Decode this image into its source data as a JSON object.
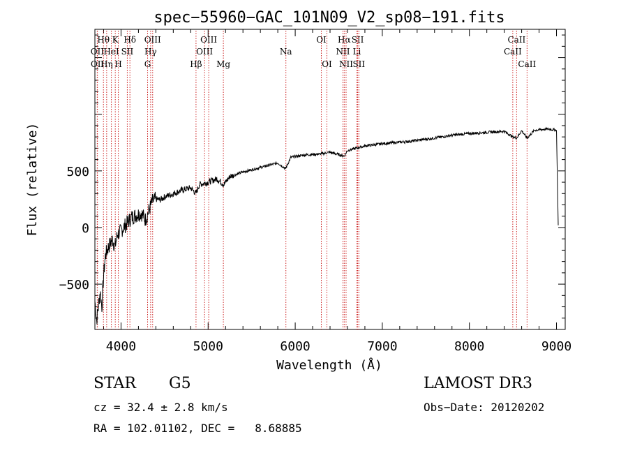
{
  "chart_data": {
    "type": "line",
    "title": "spec−55960−GAC_101N09_V2_sp08−191.fits",
    "xlabel": "Wavelength (Å)",
    "ylabel": "Flux (relative)",
    "xlim": [
      3700,
      9100
    ],
    "ylim": [
      -900,
      1750
    ],
    "grid": false,
    "xticks": [
      4000,
      5000,
      6000,
      7000,
      8000,
      9000
    ],
    "xtick_labels": [
      "4000",
      "5000",
      "6000",
      "7000",
      "8000",
      "9000"
    ],
    "yticks": [
      -500,
      0,
      500
    ],
    "ytick_labels": [
      "−500",
      "0",
      "500"
    ],
    "series": [
      {
        "name": "spectrum",
        "points": [
          [
            3700,
            -650
          ],
          [
            3720,
            -820
          ],
          [
            3740,
            -700
          ],
          [
            3760,
            -560
          ],
          [
            3780,
            -700
          ],
          [
            3800,
            -420
          ],
          [
            3820,
            -250
          ],
          [
            3850,
            -180
          ],
          [
            3880,
            -140
          ],
          [
            3900,
            -100
          ],
          [
            3930,
            -170
          ],
          [
            3960,
            -60
          ],
          [
            3990,
            -40
          ],
          [
            4030,
            0
          ],
          [
            4080,
            50
          ],
          [
            4120,
            90
          ],
          [
            4180,
            110
          ],
          [
            4230,
            130
          ],
          [
            4280,
            70
          ],
          [
            4320,
            150
          ],
          [
            4360,
            230
          ],
          [
            4400,
            250
          ],
          [
            4450,
            245
          ],
          [
            4500,
            270
          ],
          [
            4600,
            300
          ],
          [
            4700,
            330
          ],
          [
            4800,
            350
          ],
          [
            4861,
            300
          ],
          [
            4900,
            380
          ],
          [
            5000,
            400
          ],
          [
            5100,
            430
          ],
          [
            5180,
            380
          ],
          [
            5250,
            450
          ],
          [
            5400,
            490
          ],
          [
            5600,
            530
          ],
          [
            5800,
            570
          ],
          [
            5890,
            520
          ],
          [
            5950,
            620
          ],
          [
            6100,
            640
          ],
          [
            6300,
            650
          ],
          [
            6400,
            665
          ],
          [
            6563,
            630
          ],
          [
            6600,
            680
          ],
          [
            6800,
            720
          ],
          [
            7000,
            740
          ],
          [
            7300,
            760
          ],
          [
            7600,
            790
          ],
          [
            7800,
            815
          ],
          [
            8000,
            830
          ],
          [
            8200,
            840
          ],
          [
            8400,
            850
          ],
          [
            8498,
            800
          ],
          [
            8542,
            790
          ],
          [
            8600,
            855
          ],
          [
            8662,
            790
          ],
          [
            8750,
            860
          ],
          [
            8900,
            870
          ],
          [
            9000,
            860
          ],
          [
            9020,
            20
          ]
        ]
      }
    ],
    "lines": [
      {
        "name": "Hθ",
        "wavelength": 3798,
        "row": 1
      },
      {
        "name": "OII",
        "wavelength": 3727,
        "row": 2
      },
      {
        "name": "OII",
        "wavelength": 3729,
        "row": 3
      },
      {
        "name": "K",
        "wavelength": 3934,
        "row": 1
      },
      {
        "name": "HeI",
        "wavelength": 3889,
        "row": 2
      },
      {
        "name": "Hη",
        "wavelength": 3835,
        "row": 3
      },
      {
        "name": "Hδ",
        "wavelength": 4102,
        "row": 1
      },
      {
        "name": "SII",
        "wavelength": 4072,
        "row": 2
      },
      {
        "name": "H",
        "wavelength": 3969,
        "row": 3
      },
      {
        "name": "OIII",
        "wavelength": 4363,
        "row": 1
      },
      {
        "name": "Hγ",
        "wavelength": 4340,
        "row": 2
      },
      {
        "name": "G",
        "wavelength": 4305,
        "row": 3
      },
      {
        "name": "OIII",
        "wavelength": 5007,
        "row": 1
      },
      {
        "name": "OIII",
        "wavelength": 4959,
        "row": 2
      },
      {
        "name": "Hβ",
        "wavelength": 4861,
        "row": 3
      },
      {
        "name": "Mg",
        "wavelength": 5175,
        "row": 3
      },
      {
        "name": "Na",
        "wavelength": 5893,
        "row": 2
      },
      {
        "name": "OI",
        "wavelength": 6300,
        "row": 1
      },
      {
        "name": "OI",
        "wavelength": 6364,
        "row": 3
      },
      {
        "name": "Hα",
        "wavelength": 6563,
        "row": 1
      },
      {
        "name": "NII",
        "wavelength": 6548,
        "row": 2
      },
      {
        "name": "NII",
        "wavelength": 6584,
        "row": 3
      },
      {
        "name": "SII",
        "wavelength": 6717,
        "row": 1
      },
      {
        "name": "Li",
        "wavelength": 6708,
        "row": 2
      },
      {
        "name": "SII",
        "wavelength": 6731,
        "row": 3
      },
      {
        "name": "CaII",
        "wavelength": 8542,
        "row": 1
      },
      {
        "name": "CaII",
        "wavelength": 8498,
        "row": 2
      },
      {
        "name": "CaII",
        "wavelength": 8662,
        "row": 3
      }
    ]
  },
  "info": {
    "class": "STAR",
    "subclass": "G5",
    "survey": "LAMOST DR3",
    "cz": "cz = 32.4 ± 2.8 km/s",
    "obs_date": "Obs−Date: 20120202",
    "radec": "RA = 102.01102, DEC =   8.68885"
  },
  "colors": {
    "line_marker": "#cc2222",
    "spectrum": "#000000"
  }
}
